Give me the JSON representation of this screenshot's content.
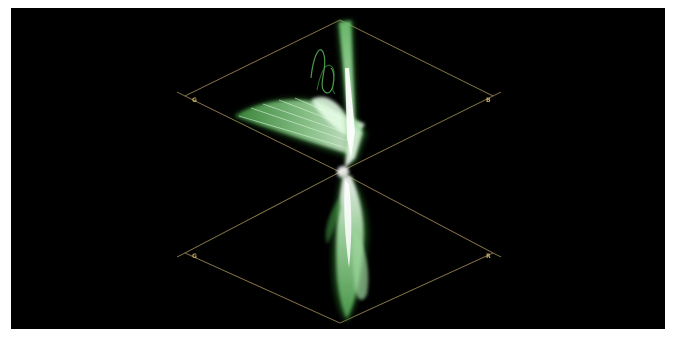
{
  "scope": {
    "kind": "diamond-scope",
    "upper_diamond": {
      "left_label": "G",
      "right_label": "B"
    },
    "lower_diamond": {
      "left_label": "G",
      "right_label": "R"
    },
    "colors": {
      "graticule": "#8a7a4a",
      "label": "#c8b060",
      "trace_bright": "#e8f5e8",
      "trace_mid": "#7fd07f",
      "trace_dim": "#2f7a2f",
      "background": "#000000"
    }
  }
}
